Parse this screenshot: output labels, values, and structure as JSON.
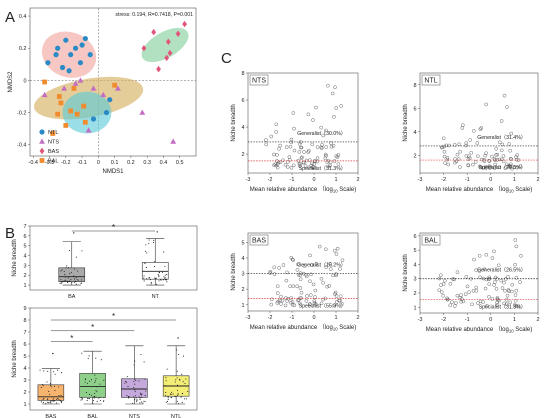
{
  "panels": {
    "a": "A",
    "b": "B",
    "c": "C"
  },
  "chart_data": [
    {
      "id": "A",
      "type": "scatter",
      "annotation": "stress: 0.194, R=0.7418, P=0.001",
      "xlabel": "NMDS1",
      "ylabel": "NMDS2",
      "xlim": [
        -0.42,
        0.6
      ],
      "ylim": [
        -0.47,
        0.45
      ],
      "xticks": [
        -0.4,
        -0.3,
        -0.2,
        -0.1,
        0,
        0.1,
        0.2,
        0.3,
        0.4,
        0.5
      ],
      "yticks": [
        -0.4,
        -0.2,
        0,
        0.2,
        0.4
      ],
      "colors": {
        "NTL": "#2a8ac6",
        "NTS": "#c46bc4",
        "BAS": "#e0567a",
        "BAL": "#f08b2e"
      },
      "series": [
        {
          "name": "NTL",
          "marker": "circle",
          "points": [
            [
              -0.26,
              0.16
            ],
            [
              -0.2,
              0.25
            ],
            [
              -0.14,
              0.2
            ],
            [
              -0.08,
              0.26
            ],
            [
              -0.22,
              0.08
            ],
            [
              -0.17,
              0.16
            ],
            [
              -0.11,
              0.11
            ],
            [
              -0.25,
              0.2
            ],
            [
              -0.31,
              0.11
            ],
            [
              -0.1,
              0.22
            ],
            [
              -0.05,
              0.16
            ],
            [
              -0.18,
              0.06
            ],
            [
              0.05,
              -0.2
            ],
            [
              -0.03,
              -0.24
            ],
            [
              0.07,
              -0.12
            ]
          ]
        },
        {
          "name": "NTS",
          "marker": "triangle",
          "points": [
            [
              -0.33,
              -0.09
            ],
            [
              -0.14,
              -0.02
            ],
            [
              -0.03,
              -0.05
            ],
            [
              -0.11,
              0.0
            ],
            [
              0.12,
              -0.05
            ],
            [
              -0.06,
              -0.31
            ],
            [
              0.27,
              -0.2
            ],
            [
              0.03,
              -0.09
            ],
            [
              -0.21,
              -0.05
            ],
            [
              0.46,
              -0.38
            ]
          ]
        },
        {
          "name": "BAS",
          "marker": "diamond",
          "points": [
            [
              0.53,
              0.35
            ],
            [
              0.43,
              0.24
            ],
            [
              0.34,
              0.3
            ],
            [
              0.42,
              0.14
            ],
            [
              0.37,
              0.07
            ],
            [
              0.28,
              0.2
            ],
            [
              0.49,
              0.29
            ],
            [
              0.44,
              0.17
            ]
          ]
        },
        {
          "name": "BAL",
          "marker": "square",
          "points": [
            [
              -0.25,
              -0.21
            ],
            [
              -0.23,
              -0.14
            ],
            [
              -0.17,
              -0.19
            ],
            [
              -0.09,
              -0.16
            ],
            [
              -0.15,
              -0.05
            ],
            [
              -0.2,
              -0.28
            ],
            [
              -0.28,
              -0.33
            ],
            [
              -0.08,
              -0.26
            ],
            [
              -0.33,
              -0.01
            ],
            [
              -0.24,
              -0.1
            ],
            [
              -0.13,
              -0.21
            ],
            [
              0.1,
              -0.03
            ]
          ]
        }
      ],
      "ellipses": [
        {
          "name": "NTL",
          "color": "#f2a79e",
          "cx": -0.18,
          "cy": 0.16,
          "rx": 0.17,
          "ry": 0.14,
          "rot": -20
        },
        {
          "name": "BAS",
          "color": "#82cf9c",
          "cx": 0.41,
          "cy": 0.22,
          "rx": 0.16,
          "ry": 0.08,
          "rot": 30
        },
        {
          "name": "BAL",
          "color": "#d5ae5c",
          "cx": -0.06,
          "cy": -0.11,
          "rx": 0.34,
          "ry": 0.12,
          "rot": 10
        },
        {
          "name": "NTS",
          "color": "#5cc9d8",
          "cx": -0.07,
          "cy": -0.2,
          "rx": 0.15,
          "ry": 0.13,
          "rot": 0
        }
      ]
    },
    {
      "id": "B-top",
      "type": "box",
      "ylabel": "Niche breadth",
      "categories": [
        "BA",
        "NT"
      ],
      "ylim": [
        0.5,
        7
      ],
      "yticks": [
        1,
        2,
        3,
        4,
        5,
        6,
        7
      ],
      "boxes": [
        {
          "min": 1.0,
          "q1": 1.35,
          "median": 1.85,
          "q3": 2.75,
          "max": 5.4,
          "outliers": [
            6.3
          ],
          "fill": "#a9a9a9"
        },
        {
          "min": 1.0,
          "q1": 1.6,
          "median": 2.4,
          "q3": 3.3,
          "max": 5.75,
          "outliers": [
            6.4
          ],
          "fill": "#ffffff"
        }
      ],
      "significance": [
        {
          "from": "BA",
          "to": "NT",
          "label": "*"
        }
      ]
    },
    {
      "id": "B-bottom",
      "type": "box",
      "ylabel": "Niche breadth",
      "categories": [
        "BAS",
        "BAL",
        "NTS",
        "NTL"
      ],
      "ylim": [
        0.5,
        9
      ],
      "yticks": [
        1,
        2,
        3,
        4,
        5,
        6,
        7,
        8,
        9
      ],
      "boxes": [
        {
          "min": 1.0,
          "q1": 1.3,
          "median": 1.6,
          "q3": 2.6,
          "max": 3.95,
          "outliers": [
            5.2
          ],
          "fill": "#f6b46f"
        },
        {
          "min": 1.0,
          "q1": 1.55,
          "median": 2.45,
          "q3": 3.55,
          "max": 5.4,
          "outliers": [],
          "fill": "#8ed08a"
        },
        {
          "min": 1.0,
          "q1": 1.55,
          "median": 2.25,
          "q3": 3.1,
          "max": 5.85,
          "outliers": [],
          "fill": "#c6a9dc"
        },
        {
          "min": 1.0,
          "q1": 1.65,
          "median": 2.5,
          "q3": 3.35,
          "max": 5.85,
          "outliers": [
            6.5
          ],
          "fill": "#f4ee77"
        }
      ],
      "significance": [
        {
          "from": "BAS",
          "to": "BAL",
          "label": "*",
          "y": 6.2
        },
        {
          "from": "BAS",
          "to": "NTS",
          "label": "*",
          "y": 7.1
        },
        {
          "from": "BAS",
          "to": "NTL",
          "label": "*",
          "y": 8.0
        }
      ]
    },
    {
      "id": "C-NTS",
      "type": "scatter",
      "tag": "NTS",
      "ylabel": "Niche breadth",
      "xlabel_prefix": "Mean relative abundance",
      "xlabel_log": "log",
      "xlabel_sub": "10",
      "xlabel_suffix": "Scale)",
      "xlim": [
        -3,
        2
      ],
      "xticks": [
        -3,
        -2,
        -1,
        0,
        1,
        2
      ],
      "ylim": [
        0.6,
        8
      ],
      "yticks": [
        2,
        4,
        6,
        8
      ],
      "generalist_line": 2.9,
      "specialist_line": 1.5,
      "generalist_label": "Generalist（30.0%）",
      "specialist_label": "Specialist（31.3%）"
    },
    {
      "id": "C-NTL",
      "type": "scatter",
      "tag": "NTL",
      "ylabel": "Niche breadth",
      "xlabel_prefix": "Mean relative abundance",
      "xlabel_log": "log",
      "xlabel_sub": "10",
      "xlabel_suffix": "Scale)",
      "xlim": [
        -3,
        2
      ],
      "xticks": [
        -3,
        -2,
        -1,
        0,
        1,
        2
      ],
      "ylim": [
        0.5,
        9
      ],
      "yticks": [
        2,
        4,
        6,
        8
      ],
      "generalist_line": 2.8,
      "specialist_line": 1.6,
      "generalist_label": "Generalist（31.4%）",
      "specialist_label": "Specialist（26.5%）"
    },
    {
      "id": "C-BAS",
      "type": "scatter",
      "tag": "BAS",
      "ylabel": "Niche breadth",
      "xlabel_prefix": "Mean relative abundance",
      "xlabel_log": "log",
      "xlabel_sub": "10",
      "xlabel_suffix": "Scale)",
      "xlim": [
        -3,
        2
      ],
      "xticks": [
        -3,
        -2,
        -1,
        0,
        1,
        2
      ],
      "ylim": [
        0.6,
        5.6
      ],
      "yticks": [
        1,
        2,
        3,
        4,
        5
      ],
      "generalist_line": 3.0,
      "specialist_line": 1.4,
      "generalist_label": "Generalist（16.2%）",
      "specialist_label": "Specialist（55.9%）"
    },
    {
      "id": "C-BAL",
      "type": "scatter",
      "tag": "BAL",
      "ylabel": "Niche breadth",
      "xlabel_prefix": "Mean relative abundance",
      "xlabel_log": "log",
      "xlabel_sub": "10",
      "xlabel_suffix": "Scale)",
      "xlim": [
        -3,
        2
      ],
      "xticks": [
        -3,
        -2,
        -1,
        0,
        1,
        2
      ],
      "ylim": [
        0.6,
        6.2
      ],
      "yticks": [
        1,
        2,
        3,
        4,
        5,
        6
      ],
      "generalist_line": 3.0,
      "specialist_line": 1.55,
      "generalist_label": "Generalist（26.5%）",
      "specialist_label": "Specialist（31.3%）"
    }
  ]
}
